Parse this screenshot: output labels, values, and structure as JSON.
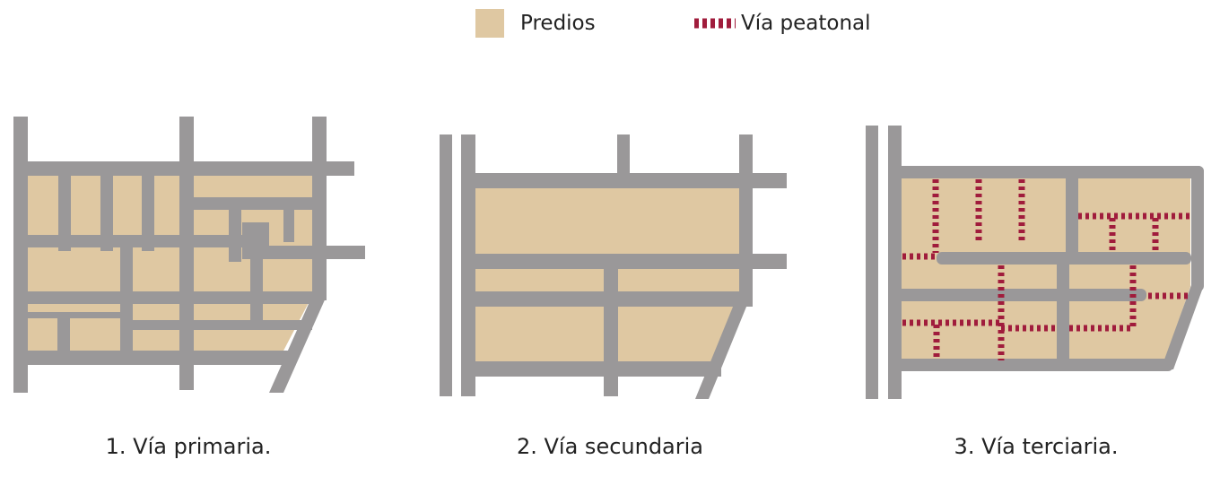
{
  "legend": {
    "parcels_label": "Predios",
    "pedestrian_label": "Vía peatonal"
  },
  "panels": [
    {
      "caption": "1. Vía primaria."
    },
    {
      "caption": "2. Vía secundaria"
    },
    {
      "caption": "3. Vía terciaria."
    }
  ],
  "colors": {
    "parcel": "#dfc8a2",
    "road": "#9a9899",
    "pedestrian": "#a01c3c",
    "text": "#222222"
  }
}
